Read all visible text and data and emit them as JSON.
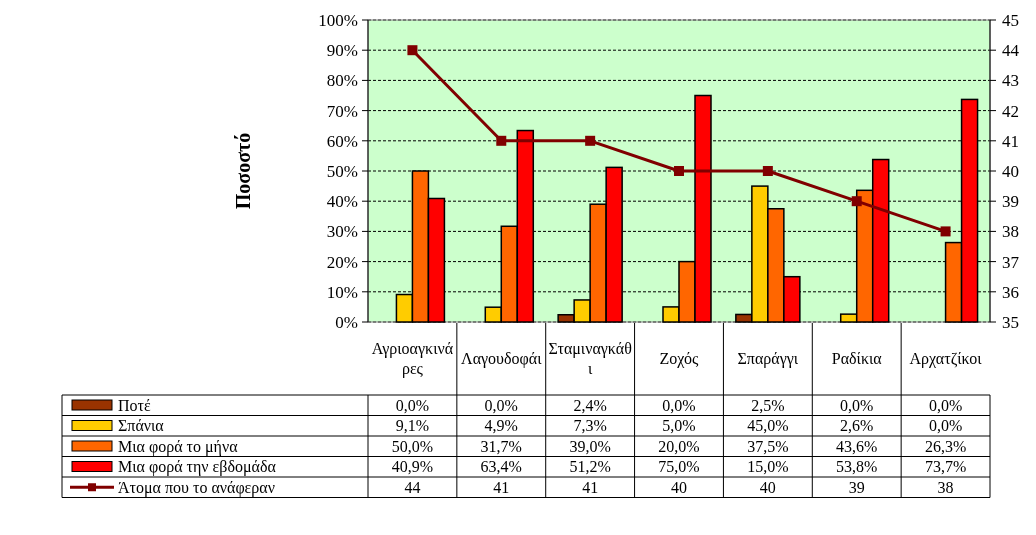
{
  "chart_data": {
    "type": "bar",
    "ylabel": "Ποσοστό",
    "categories": [
      "Αγριοαγκινάρες",
      "Λαγουδοφάι",
      "Σταμιναγκάθι",
      "Ζοχός",
      "Σπαράγγι",
      "Ραδίκια",
      "Αρχατζίκοι"
    ],
    "series": [
      {
        "name": "Ποτέ",
        "color": "#993300",
        "values": [
          0,
          0,
          2.4,
          0,
          2.5,
          0,
          0
        ],
        "value_labels": [
          "0,0%",
          "0,0%",
          "2,4%",
          "0,0%",
          "2,5%",
          "0,0%",
          "0,0%"
        ]
      },
      {
        "name": "Σπάνια",
        "color": "#ffcc00",
        "values": [
          9.1,
          4.9,
          7.3,
          5,
          45,
          2.6,
          0
        ],
        "value_labels": [
          "9,1%",
          "4,9%",
          "7,3%",
          "5,0%",
          "45,0%",
          "2,6%",
          "0,0%"
        ]
      },
      {
        "name": "Μια φορά το μήνα",
        "color": "#ff6600",
        "values": [
          50,
          31.7,
          39,
          20,
          37.5,
          43.6,
          26.3
        ],
        "value_labels": [
          "50,0%",
          "31,7%",
          "39,0%",
          "20,0%",
          "37,5%",
          "43,6%",
          "26,3%"
        ]
      },
      {
        "name": "Μια φορά την εβδομάδα",
        "color": "#ff0000",
        "values": [
          40.9,
          63.4,
          51.2,
          75,
          15,
          53.8,
          73.7
        ],
        "value_labels": [
          "40,9%",
          "63,4%",
          "51,2%",
          "75,0%",
          "15,0%",
          "53,8%",
          "73,7%"
        ]
      },
      {
        "name": "Άτομα που το ανάφεραν",
        "type": "line",
        "axis": "y2",
        "color": "#800000",
        "marker": "square",
        "values": [
          44,
          41,
          41,
          40,
          40,
          39,
          38
        ],
        "value_labels": [
          "44",
          "41",
          "41",
          "40",
          "40",
          "39",
          "38"
        ]
      }
    ],
    "ylim": [
      0,
      100
    ],
    "yticks": [
      {
        "value": 0,
        "label": "0%"
      },
      {
        "value": 10,
        "label": "10%"
      },
      {
        "value": 20,
        "label": "20%"
      },
      {
        "value": 30,
        "label": "30%"
      },
      {
        "value": 40,
        "label": "40%"
      },
      {
        "value": 50,
        "label": "50%"
      },
      {
        "value": 60,
        "label": "60%"
      },
      {
        "value": 70,
        "label": "70%"
      },
      {
        "value": 80,
        "label": "80%"
      },
      {
        "value": 90,
        "label": "90%"
      },
      {
        "value": 100,
        "label": "100%"
      }
    ],
    "y2lim": [
      35,
      45
    ],
    "y2ticks": [
      35,
      36,
      37,
      38,
      39,
      40,
      41,
      42,
      43,
      44,
      45
    ],
    "grid": "y",
    "legend": "bottom",
    "line_style": "solid"
  }
}
